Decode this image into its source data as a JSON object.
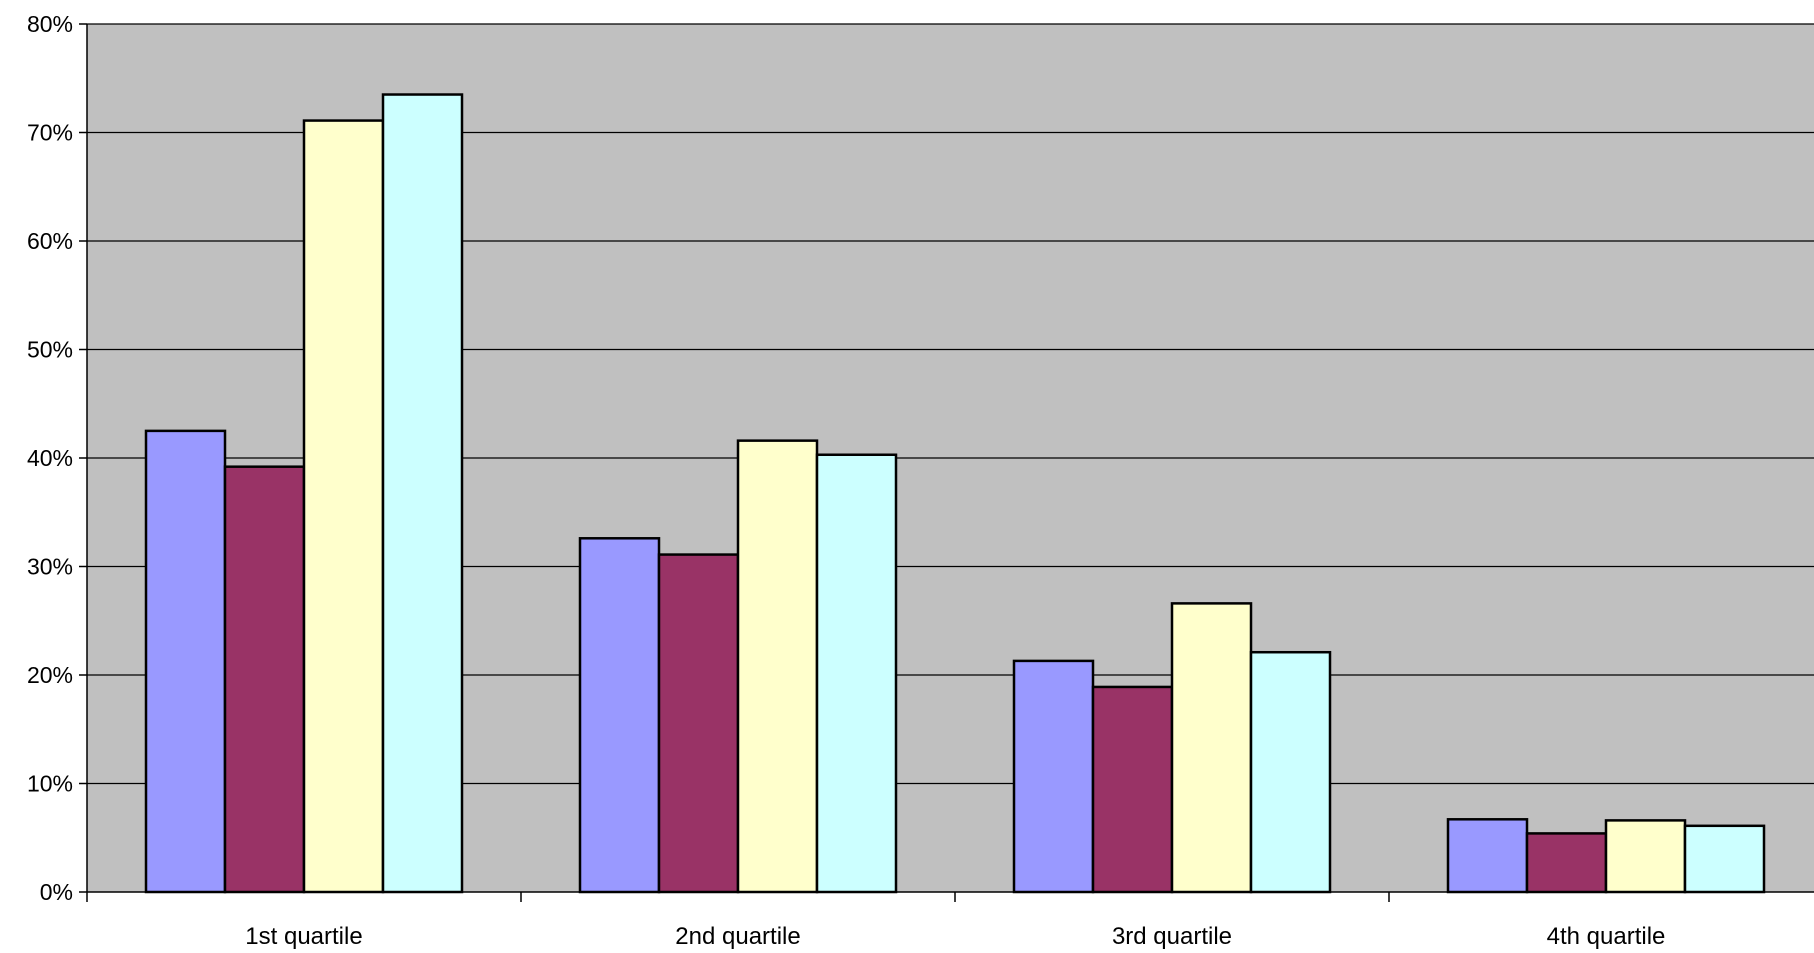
{
  "chart_data": {
    "type": "bar",
    "categories": [
      "1st quartile",
      "2nd quartile",
      "3rd quartile",
      "4th quartile"
    ],
    "series": [
      {
        "color": "#9999ff",
        "values": [
          42.5,
          32.6,
          21.3,
          6.7
        ]
      },
      {
        "color": "#993366",
        "values": [
          39.2,
          31.1,
          18.9,
          5.4
        ]
      },
      {
        "color": "#ffffcc",
        "values": [
          71.1,
          41.6,
          26.6,
          6.6
        ]
      },
      {
        "color": "#ccffff",
        "values": [
          73.5,
          40.3,
          22.1,
          6.1
        ]
      }
    ],
    "ylim": [
      0,
      80
    ],
    "yticks": [
      "0%",
      "10%",
      "20%",
      "30%",
      "40%",
      "50%",
      "60%",
      "70%",
      "80%"
    ],
    "grid": true,
    "plot_background": "#c0c0c0",
    "title": "",
    "xlabel": "",
    "ylabel": ""
  }
}
